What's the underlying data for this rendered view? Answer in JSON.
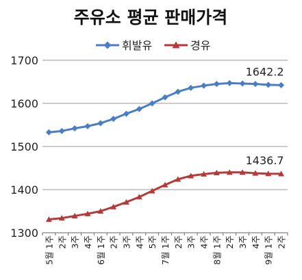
{
  "chart_data": {
    "type": "line",
    "title": "주유소 평균 판매가격",
    "ylim": [
      1300,
      1700
    ],
    "yticks": [
      1300,
      1400,
      1500,
      1600,
      1700
    ],
    "grid": "horizontal",
    "legend_position": "top-center",
    "categories": [
      "5월 1주",
      "2주",
      "3주",
      "4주",
      "6월 1주",
      "2주",
      "3주",
      "4주",
      "5주",
      "7월 1주",
      "2주",
      "3주",
      "4주",
      "8월 1주",
      "2주",
      "3주",
      "4주",
      "9월 1주",
      "2주"
    ],
    "series": [
      {
        "name": "휘발유",
        "color": "#4a7ec2",
        "marker": "diamond",
        "values": [
          1533,
          1536,
          1542,
          1547,
          1554,
          1564,
          1576,
          1587,
          1600,
          1614,
          1627,
          1636,
          1641,
          1645,
          1647,
          1646,
          1645,
          1643,
          1642.2
        ],
        "end_label": "1642.2"
      },
      {
        "name": "경유",
        "color": "#b23a3a",
        "marker": "triangle",
        "values": [
          1331,
          1334,
          1339,
          1344,
          1350,
          1360,
          1371,
          1383,
          1397,
          1411,
          1424,
          1432,
          1436,
          1439,
          1440,
          1440,
          1438,
          1437,
          1436.7
        ],
        "end_label": "1436.7"
      }
    ]
  }
}
